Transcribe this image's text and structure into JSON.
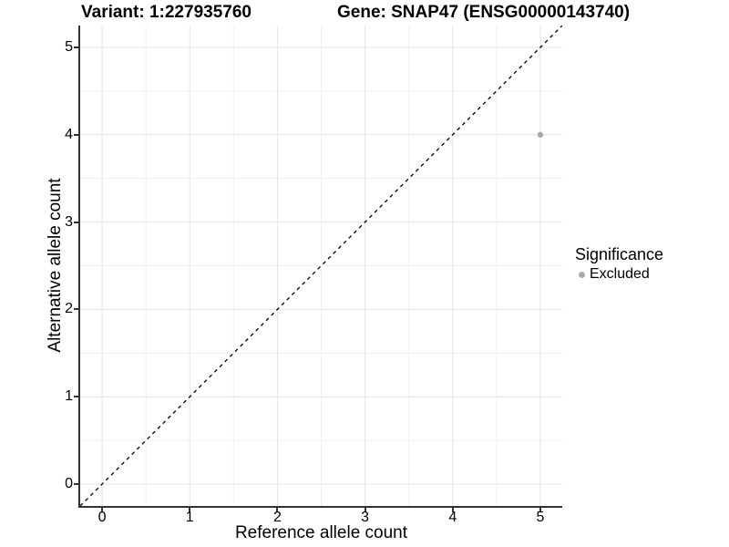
{
  "titles": {
    "variant": "Variant: 1:227935760",
    "gene": "Gene: SNAP47 (ENSG00000143740)"
  },
  "chart_data": {
    "type": "scatter",
    "title_left": "Variant: 1:227935760",
    "title_right": "Gene: SNAP47 (ENSG00000143740)",
    "xlabel": "Reference allele count",
    "ylabel": "Alternative allele count",
    "xlim": [
      -0.25,
      5.25
    ],
    "ylim": [
      -0.25,
      5.25
    ],
    "x_ticks": [
      0,
      1,
      2,
      3,
      4,
      5
    ],
    "y_ticks": [
      0,
      1,
      2,
      3,
      4,
      5
    ],
    "grid": "major+minor",
    "points": [
      {
        "x": 5,
        "y": 4,
        "series": "Excluded"
      }
    ],
    "reference_line": {
      "type": "identity",
      "slope": 1,
      "intercept": 0,
      "style": "dashed"
    },
    "legend": {
      "title": "Significance",
      "position": "right",
      "entries": [
        {
          "label": "Excluded",
          "marker": "circle",
          "color": "#aaaaaa"
        }
      ]
    }
  },
  "colors": {
    "background": "#ffffff",
    "axis_line": "#333333",
    "tick_mark": "#333333",
    "grid_major": "#e4e4e4",
    "grid_minor": "#f1f1f1",
    "reference_line": "#000000",
    "point": "#aaaaaa",
    "text": "#000000"
  }
}
